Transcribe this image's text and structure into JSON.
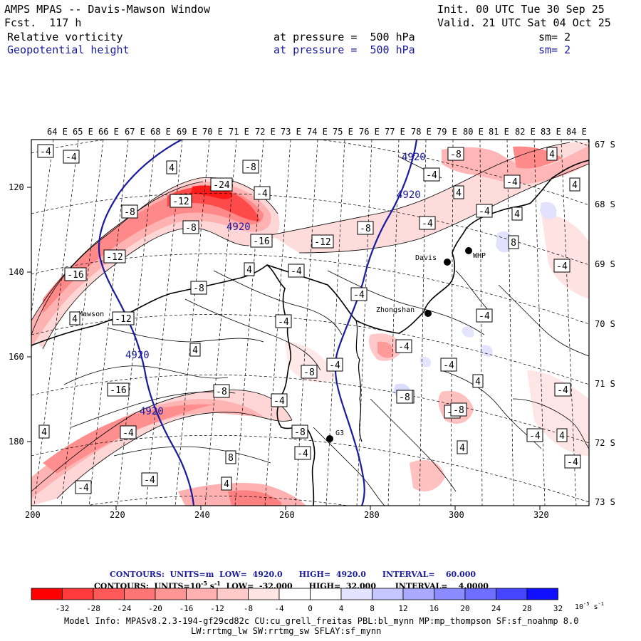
{
  "header": {
    "title": "AMPS MPAS -- Davis-Mawson Window",
    "forecast": "Fcst.  117 h",
    "init": "Init. 00 UTC Tue 30 Sep 25",
    "valid": "Valid. 21 UTC Sat 04 Oct 25",
    "fields": [
      {
        "name": "Relative vorticity",
        "pressure_label": "at pressure =  500 hPa",
        "smooth": "sm= 2"
      },
      {
        "name": "Geopotential height",
        "pressure_label": "at pressure =  500 hPa",
        "smooth": "sm= 2"
      }
    ]
  },
  "map": {
    "lon_labels": [
      "64 E",
      "65 E",
      "66 E",
      "67 E",
      "68 E",
      "69 E",
      "70 E",
      "71 E",
      "72 E",
      "73 E",
      "74 E",
      "75 E",
      "76 E",
      "77 E",
      "78 E",
      "79 E",
      "80 E",
      "81 E",
      "82 E",
      "83 E",
      "84 E"
    ],
    "lat_labels": [
      "67 S",
      "68 S",
      "69 S",
      "70 S",
      "71 S",
      "72 S",
      "73 S"
    ],
    "x_ticks": [
      "200",
      "220",
      "240",
      "260",
      "280",
      "300",
      "320"
    ],
    "y_ticks": [
      "120",
      "140",
      "160",
      "180"
    ],
    "stations": [
      {
        "name": "Mawson"
      },
      {
        "name": "Davis"
      },
      {
        "name": "WHP"
      },
      {
        "name": "Zhongshan"
      },
      {
        "name": "G3"
      }
    ],
    "height_contour_labels": [
      "4920",
      "4920",
      "4920",
      "4920",
      "4920"
    ],
    "vorticity_labels": [
      {
        "v": "-4"
      },
      {
        "v": "-4"
      },
      {
        "v": "4"
      },
      {
        "v": "-8"
      },
      {
        "v": "-24"
      },
      {
        "v": "-4"
      },
      {
        "v": "4"
      },
      {
        "v": "-12"
      },
      {
        "v": "-8"
      },
      {
        "v": "-8"
      },
      {
        "v": "-16"
      },
      {
        "v": "-12"
      },
      {
        "v": "-8"
      },
      {
        "v": "-12"
      },
      {
        "v": "-16"
      },
      {
        "v": "4"
      },
      {
        "v": "-4"
      },
      {
        "v": "-8"
      },
      {
        "v": "4"
      },
      {
        "v": "-4"
      },
      {
        "v": "-4"
      },
      {
        "v": "4"
      },
      {
        "v": "-4"
      },
      {
        "v": "-4"
      },
      {
        "v": "8"
      },
      {
        "v": "4"
      },
      {
        "v": "-4"
      },
      {
        "v": "-8"
      },
      {
        "v": "-4"
      },
      {
        "v": "4"
      },
      {
        "v": "-12"
      },
      {
        "v": "-4"
      },
      {
        "v": "-4"
      },
      {
        "v": "4"
      },
      {
        "v": "-4"
      },
      {
        "v": "-8"
      },
      {
        "v": "-4"
      },
      {
        "v": "-4"
      },
      {
        "v": "-16"
      },
      {
        "v": "-8"
      },
      {
        "v": "-8"
      },
      {
        "v": "-4"
      },
      {
        "v": "-4"
      },
      {
        "v": "-4"
      },
      {
        "v": "-8"
      },
      {
        "v": "4"
      },
      {
        "v": "-4"
      },
      {
        "v": "4"
      },
      {
        "v": "-8"
      },
      {
        "v": "4"
      },
      {
        "v": "-4"
      },
      {
        "v": "4"
      },
      {
        "v": "-4"
      },
      {
        "v": "8"
      },
      {
        "v": "-8"
      },
      {
        "v": "-4"
      },
      {
        "v": "4"
      },
      {
        "v": "-4"
      },
      {
        "v": "-4"
      }
    ]
  },
  "legend": {
    "contour_line1": "CONTOURS:  UNITS=m  LOW=  4920.0      HIGH=  4920.0      INTERVAL=    60.000",
    "contour_line2": "CONTOURS:  UNITS=10",
    "contour_line2_exp": "-5",
    "contour_line2_s": " s",
    "contour_line2_sexp": "-1",
    "contour_line2_rest": "  LOW=  -32.000      HIGH=  32.000       INTERVAL=    4.0000",
    "colorbar_ticks": [
      "-32",
      "-28",
      "-24",
      "-20",
      "-16",
      "-12",
      "-8",
      "-4",
      "0",
      "4",
      "8",
      "12",
      "16",
      "20",
      "24",
      "28",
      "32"
    ],
    "colorbar_colors": [
      "#ff0000",
      "#ff3a3a",
      "#ff5858",
      "#ff7575",
      "#ff9494",
      "#ffb0b0",
      "#ffcaca",
      "#ffe4e4",
      "#ffffff",
      "#ffffff",
      "#e3e3ff",
      "#c6c6ff",
      "#a9a9ff",
      "#8b8bff",
      "#6d6dff",
      "#4545ff",
      "#1010ff"
    ],
    "units": "10",
    "units_exp": "-5",
    "units_s": " s",
    "units_sexp": "-1"
  },
  "footer": {
    "model_info": "Model Info: MPASv8.2.3-194-gf29cd82c CU:cu_grell_freitas PBL:bl_mynn MP:mp_thompson SF:sf_noahmp 8.0",
    "model_info2": "LW:rrtmg_lw SW:rrtmg_sw SFLAY:sf_mynn"
  }
}
